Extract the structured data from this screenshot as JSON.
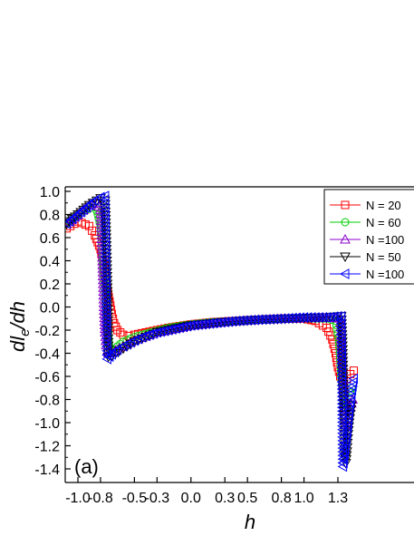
{
  "chart_data": {
    "type": "scatter",
    "panel_label": "(a)",
    "xlabel": "h",
    "ylabel": "dl",
    "ylabel_sub": "e",
    "ylabel_rest": "/dh",
    "xlim": [
      -1.1,
      1.45
    ],
    "ylim": [
      -1.5,
      1.05
    ],
    "xticks": [
      -1.0,
      -0.8,
      -0.5,
      -0.3,
      0.0,
      0.3,
      0.5,
      0.8,
      1.0,
      1.3
    ],
    "xtick_labels": [
      "-1.0",
      "-0.8",
      "-0.5",
      "-0.3",
      "0.0",
      "0.3",
      "0.5",
      "0.8",
      "1.0",
      "1.3"
    ],
    "yticks": [
      1.0,
      0.8,
      0.6,
      0.4,
      0.2,
      0.0,
      -0.2,
      -0.4,
      -0.6,
      -0.8,
      -1.0,
      -1.2,
      -1.4
    ],
    "ytick_labels": [
      "1.0",
      "0.8",
      "0.6",
      "0.4",
      "0.2",
      "0.0",
      "-0.2",
      "-0.4",
      "-0.6",
      "-0.8",
      "-1.0",
      "-1.2",
      "-1.4"
    ],
    "legend_position": "top-right",
    "series": [
      {
        "name": "N = 20",
        "marker": "square",
        "color": "#ff0000",
        "x": [
          -1.1,
          -1.0,
          -0.9,
          -0.85,
          -0.8,
          -0.77,
          -0.75,
          -0.72,
          -0.7,
          -0.68,
          -0.65,
          -0.6,
          -0.55,
          -0.5,
          -0.4,
          -0.3,
          -0.2,
          0.0,
          0.2,
          0.4,
          0.6,
          0.8,
          1.0,
          1.1,
          1.2,
          1.25,
          1.28,
          1.3,
          1.32,
          1.35,
          1.38,
          1.41,
          1.44
        ],
        "y": [
          0.68,
          0.74,
          0.7,
          0.62,
          0.5,
          0.36,
          0.2,
          0.05,
          -0.06,
          -0.14,
          -0.2,
          -0.24,
          -0.25,
          -0.24,
          -0.22,
          -0.2,
          -0.18,
          -0.15,
          -0.13,
          -0.12,
          -0.11,
          -0.1,
          -0.1,
          -0.12,
          -0.18,
          -0.28,
          -0.4,
          -0.52,
          -0.6,
          -0.63,
          -0.62,
          -0.58,
          -0.55
        ]
      },
      {
        "name": "N = 60",
        "marker": "circle",
        "color": "#00cc00",
        "x": [
          -1.1,
          -1.0,
          -0.9,
          -0.84,
          -0.8,
          -0.78,
          -0.76,
          -0.74,
          -0.72,
          -0.7,
          -0.68,
          -0.65,
          -0.6,
          -0.5,
          -0.4,
          -0.2,
          0.0,
          0.2,
          0.4,
          0.6,
          0.8,
          1.0,
          1.2,
          1.28,
          1.31,
          1.33,
          1.35,
          1.37,
          1.39,
          1.42
        ],
        "y": [
          0.72,
          0.8,
          0.85,
          0.86,
          0.7,
          0.4,
          0.1,
          -0.2,
          -0.34,
          -0.38,
          -0.37,
          -0.34,
          -0.3,
          -0.26,
          -0.23,
          -0.18,
          -0.15,
          -0.13,
          -0.12,
          -0.11,
          -0.1,
          -0.1,
          -0.1,
          -0.12,
          -0.3,
          -0.6,
          -0.85,
          -0.88,
          -0.82,
          -0.7
        ]
      },
      {
        "name": "N =100",
        "marker": "triangle-up",
        "color": "#8800cc",
        "x": [
          -1.1,
          -1.0,
          -0.9,
          -0.83,
          -0.8,
          -0.79,
          -0.78,
          -0.77,
          -0.76,
          -0.75,
          -0.74,
          -0.73,
          -0.7,
          -0.6,
          -0.5,
          -0.3,
          0.0,
          0.3,
          0.6,
          0.9,
          1.2,
          1.32,
          1.33,
          1.34,
          1.35,
          1.36,
          1.37,
          1.38,
          1.4,
          1.43
        ],
        "y": [
          0.72,
          0.8,
          0.88,
          0.9,
          0.84,
          0.62,
          0.3,
          0.0,
          -0.22,
          -0.33,
          -0.38,
          -0.4,
          -0.39,
          -0.34,
          -0.29,
          -0.22,
          -0.16,
          -0.13,
          -0.11,
          -0.1,
          -0.09,
          -0.1,
          -0.25,
          -0.45,
          -0.7,
          -0.9,
          -1.02,
          -1.0,
          -0.9,
          -0.8
        ]
      },
      {
        "name": "N = 50",
        "marker": "triangle-down",
        "color": "#000000",
        "x": [
          -1.1,
          -1.0,
          -0.9,
          -0.8,
          -0.76,
          -0.75,
          -0.74,
          -0.73,
          -0.7,
          -0.6,
          -0.5,
          -0.3,
          0.0,
          0.3,
          0.6,
          0.9,
          1.2,
          1.33,
          1.34,
          1.35,
          1.36,
          1.37,
          1.38,
          1.39,
          1.4,
          1.42
        ],
        "y": [
          0.72,
          0.8,
          0.88,
          0.94,
          0.92,
          0.6,
          0.2,
          -0.43,
          -0.42,
          -0.36,
          -0.3,
          -0.22,
          -0.16,
          -0.13,
          -0.11,
          -0.1,
          -0.09,
          -0.08,
          -0.3,
          -0.8,
          -1.3,
          -1.35,
          -1.25,
          -1.1,
          -1.0,
          -0.85
        ]
      },
      {
        "name": "N =100",
        "marker": "triangle-left",
        "color": "#0000ff",
        "x": [
          -1.1,
          -1.05,
          -1.0,
          -0.95,
          -0.9,
          -0.85,
          -0.8,
          -0.76,
          -0.755,
          -0.75,
          -0.745,
          -0.74,
          -0.72,
          -0.7,
          -0.65,
          -0.6,
          -0.5,
          -0.4,
          -0.3,
          -0.2,
          0.0,
          0.2,
          0.4,
          0.6,
          0.8,
          1.0,
          1.2,
          1.3,
          1.33,
          1.34,
          1.345,
          1.35,
          1.36,
          1.37,
          1.38,
          1.39,
          1.4,
          1.42,
          1.44
        ],
        "y": [
          0.72,
          0.76,
          0.8,
          0.84,
          0.88,
          0.92,
          0.95,
          0.96,
          0.6,
          0.24,
          -0.2,
          -0.45,
          -0.43,
          -0.41,
          -0.37,
          -0.34,
          -0.29,
          -0.25,
          -0.22,
          -0.2,
          -0.16,
          -0.14,
          -0.12,
          -0.11,
          -0.1,
          -0.09,
          -0.09,
          -0.08,
          -0.08,
          -0.9,
          -1.38,
          -1.35,
          -1.27,
          -1.18,
          -1.1,
          -1.0,
          -0.9,
          -0.75,
          -0.62
        ]
      }
    ]
  }
}
